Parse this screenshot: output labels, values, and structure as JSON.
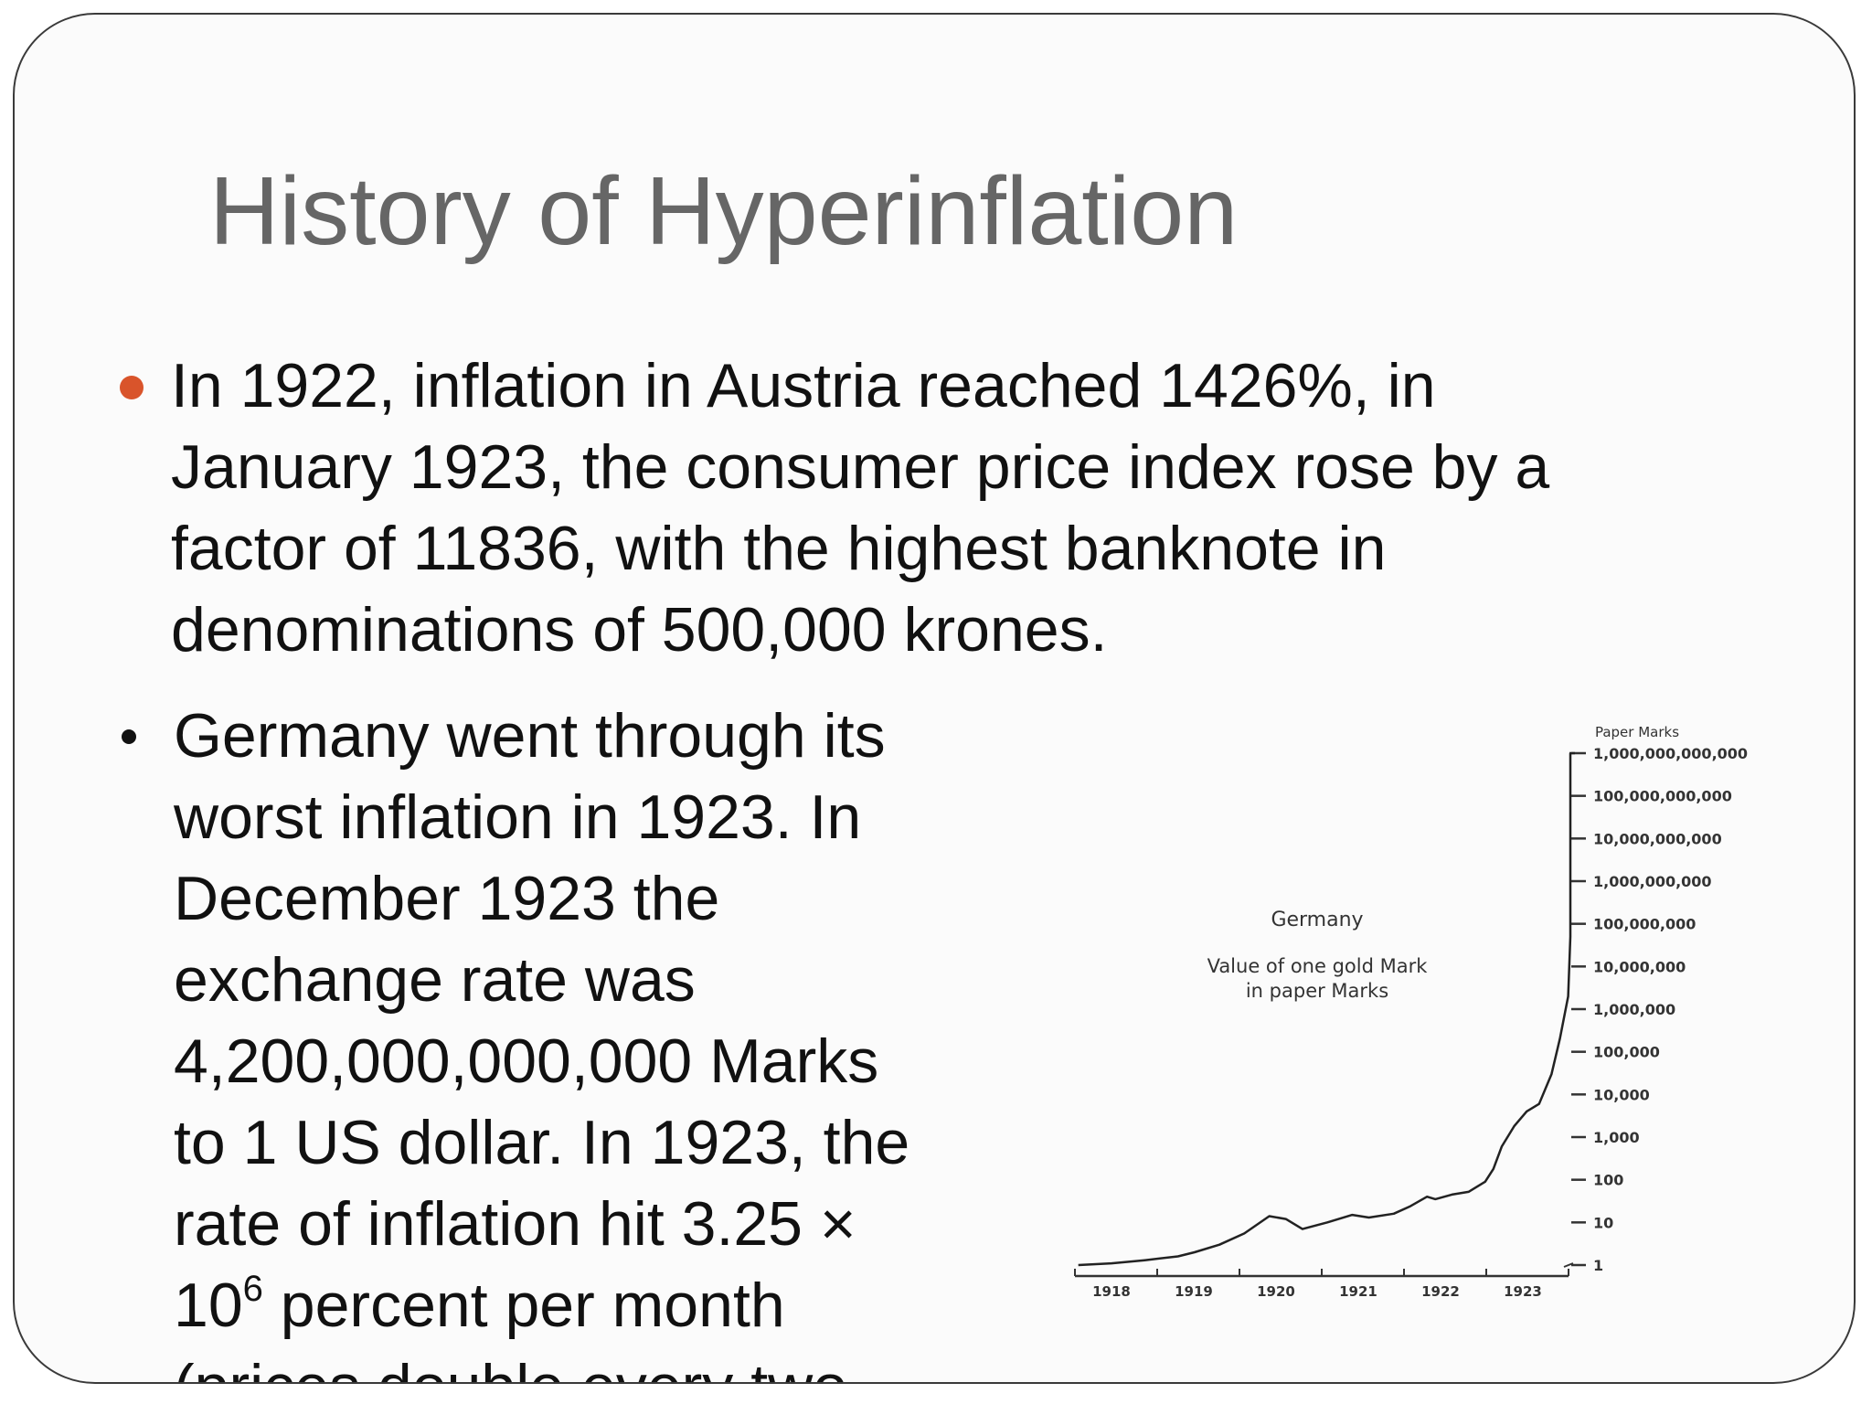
{
  "slide": {
    "title": "History of Hyperinflation",
    "accent_color": "#d9542b",
    "title_color": "#666666",
    "bullets": [
      {
        "lines": [
          "In 1922, inflation in Austria reached 1426%, in",
          "January 1923, the consumer price index rose by a",
          "factor of 11836, with the highest banknote in",
          "denominations of 500,000 krones."
        ]
      },
      {
        "lines": [
          "Germany went through its",
          "worst inflation in 1923. In",
          "December 1923 the",
          "exchange rate was",
          "4,200,000,000,000 Marks",
          "to 1 US dollar. In 1923, the",
          "rate of inflation hit 3.25 ×"
        ],
        "exp_base": "10",
        "exp_power": "6",
        "exp_rest": " percent per month",
        "last_line": "(prices double every two"
      }
    ]
  },
  "chart_data": {
    "type": "line",
    "title": "Germany",
    "subtitle_line1": "Value of one gold Mark",
    "subtitle_line2": "in paper Marks",
    "ylabel": "Paper Marks",
    "yscale": "log",
    "y_ticks": [
      "1,000,000,000,000",
      "100,000,000,000",
      "10,000,000,000",
      "1,000,000,000",
      "100,000,000",
      "10,000,000",
      "1,000,000",
      "100,000",
      "10,000",
      "1,000",
      "100",
      "10",
      "1"
    ],
    "x_ticks": [
      "1918",
      "1919",
      "1920",
      "1921",
      "1922",
      "1923"
    ],
    "xlim": [
      1918,
      1924
    ],
    "ylim": [
      1,
      1000000000000
    ],
    "grid": false,
    "series": [
      {
        "x": [
          1917.6,
          1918.0,
          1918.4,
          1918.8,
          1919.0,
          1919.3,
          1919.6,
          1919.9,
          1920.1,
          1920.3,
          1920.6,
          1920.9,
          1921.1,
          1921.4,
          1921.6,
          1921.8,
          1921.9,
          1922.1,
          1922.3,
          1922.5,
          1922.6,
          1922.7,
          1922.85,
          1923.0,
          1923.15,
          1923.3,
          1923.4,
          1923.5,
          1923.6,
          1923.7,
          1923.75,
          1923.8,
          1923.85,
          1923.9,
          1923.95
        ],
        "y": [
          1.0,
          1.1,
          1.3,
          1.6,
          2.0,
          3.0,
          5.5,
          14,
          12,
          7,
          10,
          15,
          13,
          16,
          24,
          40,
          35,
          45,
          52,
          90,
          180,
          600,
          1800,
          4000,
          6000,
          30000,
          200000,
          2000000,
          50000000,
          1000000000,
          30000000000,
          300000000000,
          700000000000,
          1000000000000,
          1000000000000
        ]
      }
    ]
  }
}
